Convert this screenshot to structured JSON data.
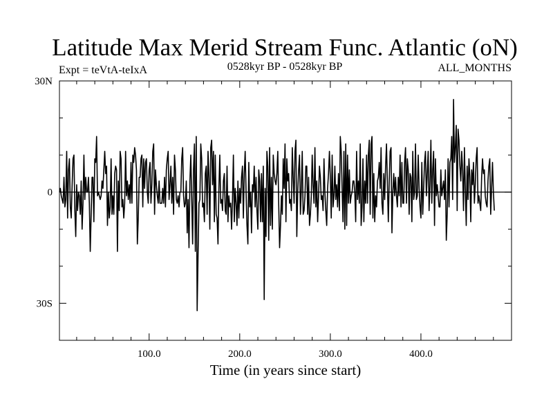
{
  "chart_data": {
    "type": "line",
    "title": "Latitude Max Merid Stream Func. Atlantic (oN)",
    "subtitle_left": "Expt = teVtA-teIxA",
    "subtitle_center": "0528kyr BP - 0528kyr BP",
    "subtitle_right": "ALL_MONTHS",
    "xlabel": "Time (in years since start)",
    "ylabel": "",
    "xlim": [
      1,
      500
    ],
    "ylim": [
      -40,
      30
    ],
    "x_ticks": [
      {
        "value": 100,
        "label": "100.0"
      },
      {
        "value": 200,
        "label": "200.0"
      },
      {
        "value": 300,
        "label": "300.0"
      },
      {
        "value": 400,
        "label": "400.0"
      }
    ],
    "y_ticks": [
      {
        "value": 30,
        "label": "30N"
      },
      {
        "value": 0,
        "label": "0"
      },
      {
        "value": -30,
        "label": "30S"
      }
    ],
    "zero_line": true,
    "series": [
      {
        "name": "latitude",
        "x_start": 1,
        "x_step": 1,
        "values": [
          0,
          1,
          -1,
          -2,
          -3,
          4,
          -4,
          -2,
          11,
          -7,
          6,
          9,
          -4,
          -7,
          2,
          9,
          10,
          -5,
          -12,
          2,
          -5,
          0,
          -1,
          -6,
          3,
          -10,
          -3,
          10,
          -2,
          4,
          0,
          0,
          4,
          -3,
          -16,
          -6,
          4,
          4,
          -8,
          9,
          8,
          15,
          -1,
          0,
          -1,
          -2,
          -1,
          3,
          1,
          6,
          11,
          5,
          7,
          -9,
          0,
          -7,
          -4,
          9,
          -6,
          -1,
          -6,
          5,
          7,
          6,
          -16,
          3,
          -5,
          11,
          9,
          -4,
          -2,
          -7,
          -3,
          11,
          -1,
          3,
          -2,
          2,
          -3,
          8,
          -3,
          10,
          8,
          12,
          10,
          6,
          -14,
          -7,
          4,
          4,
          9,
          10,
          -4,
          9,
          1,
          8,
          9,
          0,
          -3,
          6,
          8,
          -3,
          2,
          11,
          13,
          -6,
          6,
          2,
          -1,
          -3,
          3,
          -3,
          -3,
          -3,
          1,
          -3,
          4,
          -4,
          6,
          9,
          11,
          -2,
          2,
          7,
          -3,
          4,
          -6,
          10,
          6,
          -2,
          -3,
          -1,
          -4,
          0,
          0,
          9,
          12,
          -1,
          -4,
          -3,
          3,
          -11,
          -2,
          -15,
          3,
          10,
          -2,
          -14,
          6,
          13,
          -16,
          15,
          -32,
          -17,
          -3,
          -2,
          13,
          9,
          -4,
          -3,
          -8,
          5,
          7,
          -6,
          11,
          4,
          -10,
          12,
          14,
          2,
          11,
          -8,
          10,
          -6,
          -7,
          -14,
          1,
          10,
          -3,
          -2,
          -5,
          3,
          5,
          -5,
          -6,
          7,
          -8,
          -1,
          -4,
          -3,
          -10,
          -2,
          10,
          -8,
          1,
          -3,
          -9,
          3,
          -7,
          1,
          -3,
          4,
          7,
          -7,
          5,
          11,
          0,
          -9,
          -14,
          8,
          -4,
          0,
          -11,
          2,
          0,
          7,
          -4,
          4,
          -5,
          -10,
          6,
          3,
          -8,
          5,
          -8,
          7,
          -29,
          1,
          -12,
          11,
          7,
          -13,
          12,
          -9,
          4,
          -10,
          10,
          5,
          3,
          2,
          5,
          11,
          -3,
          -15,
          -9,
          -1,
          -6,
          9,
          1,
          13,
          -8,
          9,
          3,
          5,
          -3,
          -2,
          -5,
          12,
          4,
          -3,
          11,
          14,
          -12,
          0,
          6,
          10,
          -6,
          1,
          11,
          -6,
          -5,
          -1,
          7,
          7,
          -6,
          4,
          -9,
          -6,
          -1,
          10,
          2,
          -3,
          12,
          -4,
          3,
          -8,
          -1,
          7,
          4,
          -2,
          -1,
          -5,
          9,
          0,
          -5,
          -9,
          1,
          5,
          11,
          4,
          -7,
          10,
          -4,
          -1,
          7,
          -2,
          2,
          -4,
          5,
          -5,
          15,
          11,
          1,
          -8,
          11,
          -10,
          13,
          -9,
          10,
          -3,
          6,
          -3,
          -1,
          0,
          3,
          3,
          0,
          -8,
          11,
          -2,
          3,
          -3,
          13,
          -9,
          -4,
          9,
          -8,
          3,
          -3,
          10,
          -3,
          10,
          14,
          -6,
          13,
          15,
          -7,
          5,
          -8,
          -1,
          -4,
          3,
          4,
          8,
          1,
          12,
          -3,
          -6,
          5,
          -2,
          7,
          13,
          2,
          -8,
          3,
          11,
          12,
          -11,
          0,
          5,
          -1,
          4,
          -1,
          -4,
          4,
          -1,
          10,
          -4,
          8,
          -3,
          -3,
          8,
          12,
          -3,
          9,
          6,
          -6,
          5,
          4,
          -8,
          11,
          -2,
          0,
          13,
          -2,
          -1,
          10,
          1,
          -4,
          -7,
          8,
          -6,
          1,
          8,
          11,
          -1,
          5,
          11,
          -5,
          2,
          14,
          -3,
          6,
          11,
          -9,
          9,
          -1,
          2,
          -1,
          -4,
          -4,
          6,
          -1,
          1,
          3,
          -2,
          6,
          -13,
          -6,
          9,
          -4,
          8,
          9,
          15,
          -2,
          25,
          8,
          12,
          18,
          -5,
          17,
          14,
          7,
          3,
          11,
          6,
          -5,
          12,
          1,
          -9,
          7,
          -2,
          9,
          4,
          -8,
          6,
          2,
          8,
          -3,
          2,
          9,
          12,
          -3,
          -1,
          -3,
          -5,
          4,
          9,
          5,
          6,
          -1,
          -3,
          -4,
          3,
          7,
          9,
          -6,
          1,
          8,
          0,
          -5
        ]
      }
    ]
  }
}
